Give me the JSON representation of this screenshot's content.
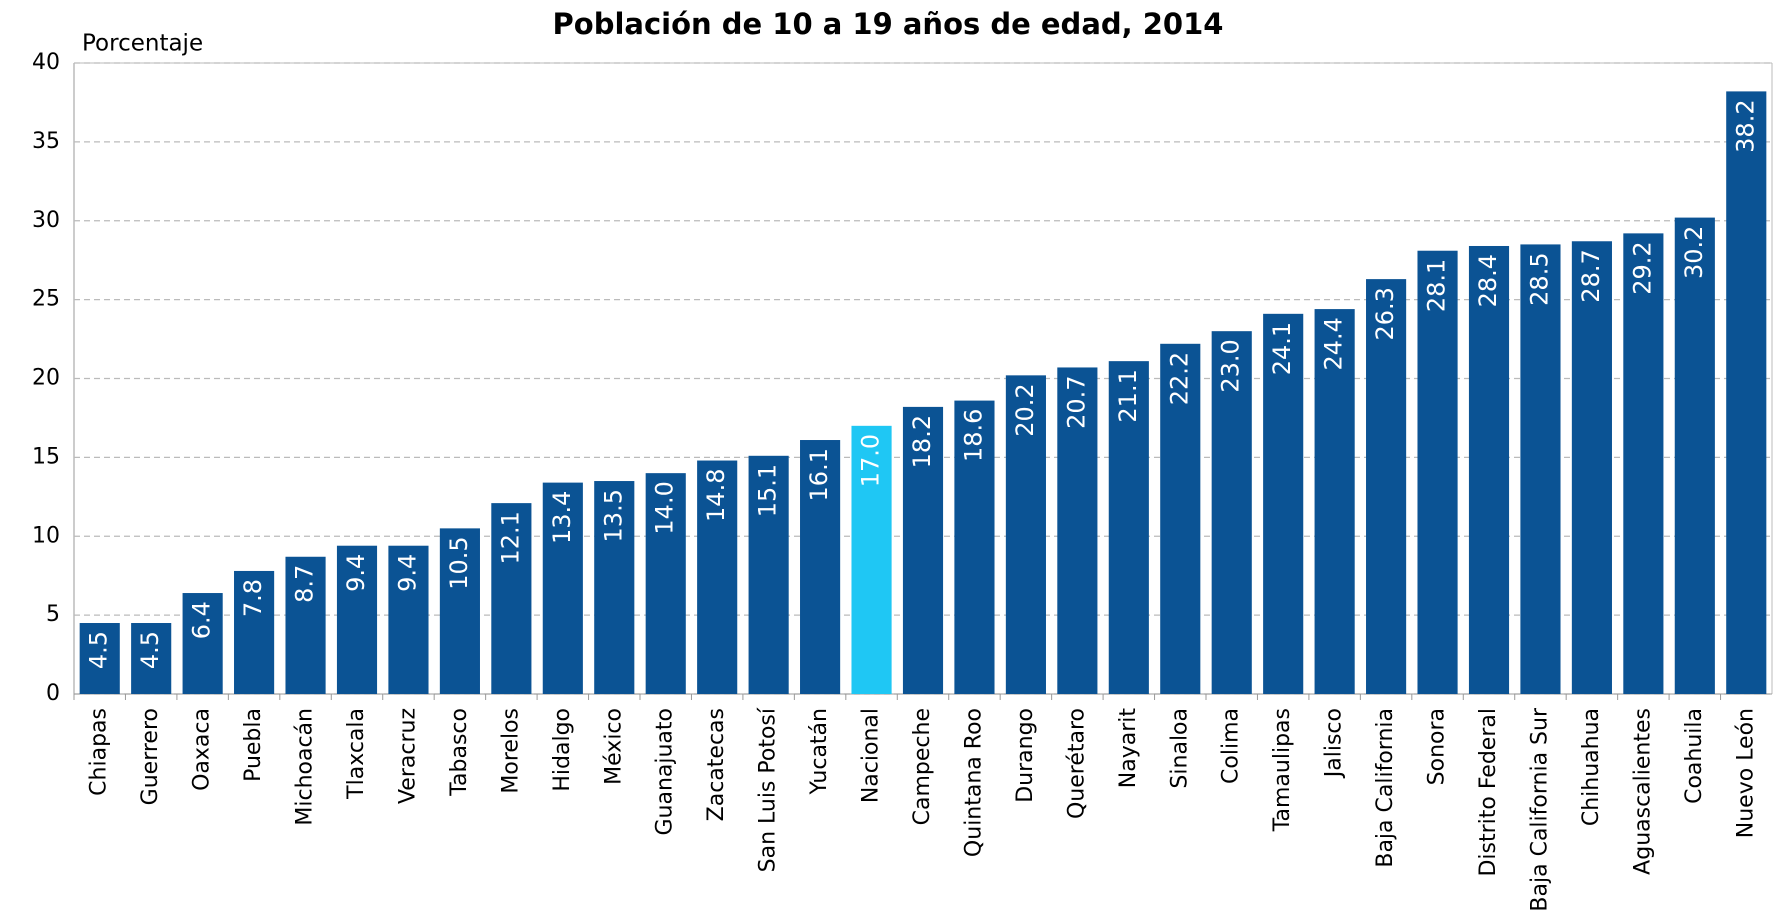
{
  "chart_data": {
    "type": "bar",
    "title": "Población de 10 a 19 años de edad, 2014",
    "y_axis_label": "Porcentaje",
    "categories": [
      "Chiapas",
      "Guerrero",
      "Oaxaca",
      "Puebla",
      "Michoacán",
      "Tlaxcala",
      "Veracruz",
      "Tabasco",
      "Morelos",
      "Hidalgo",
      "México",
      "Guanajuato",
      "Zacatecas",
      "San Luis Potosí",
      "Yucatán",
      "Nacional",
      "Campeche",
      "Quintana Roo",
      "Durango",
      "Querétaro",
      "Nayarit",
      "Sinaloa",
      "Colima",
      "Tamaulipas",
      "Jalisco",
      "Baja California",
      "Sonora",
      "Distrito Federal",
      "Baja California Sur",
      "Chihuahua",
      "Aguascalientes",
      "Coahuila",
      "Nuevo León"
    ],
    "values": [
      4.5,
      4.5,
      6.4,
      7.8,
      8.7,
      9.4,
      9.4,
      10.5,
      12.1,
      13.4,
      13.5,
      14.0,
      14.8,
      15.1,
      16.1,
      17.0,
      18.2,
      18.6,
      20.2,
      20.7,
      21.1,
      22.2,
      23.0,
      24.1,
      24.4,
      26.3,
      28.1,
      28.4,
      28.5,
      28.7,
      29.2,
      30.2,
      38.2
    ],
    "value_labels": [
      "4.5",
      "4.5",
      "6.4",
      "7.8",
      "8.7",
      "9.4",
      "9.4",
      "10.5",
      "12.1",
      "13.4",
      "13.5",
      "14.0",
      "14.8",
      "15.1",
      "16.1",
      "17.0",
      "18.2",
      "18.6",
      "20.2",
      "20.7",
      "21.1",
      "22.2",
      "23.0",
      "24.1",
      "24.4",
      "26.3",
      "28.1",
      "28.4",
      "28.5",
      "28.7",
      "29.2",
      "30.2",
      "38.2"
    ],
    "colors": [
      "#0b5394",
      "#0b5394",
      "#0b5394",
      "#0b5394",
      "#0b5394",
      "#0b5394",
      "#0b5394",
      "#0b5394",
      "#0b5394",
      "#0b5394",
      "#0b5394",
      "#0b5394",
      "#0b5394",
      "#0b5394",
      "#0b5394",
      "#1fc7f4",
      "#0b5394",
      "#0b5394",
      "#0b5394",
      "#0b5394",
      "#0b5394",
      "#0b5394",
      "#0b5394",
      "#0b5394",
      "#0b5394",
      "#0b5394",
      "#0b5394",
      "#0b5394",
      "#0b5394",
      "#0b5394",
      "#0b5394",
      "#0b5394",
      "#0b5394"
    ],
    "ylim": [
      0,
      40
    ],
    "yticks": [
      0,
      5,
      10,
      15,
      20,
      25,
      30,
      35,
      40
    ],
    "grid": true
  }
}
